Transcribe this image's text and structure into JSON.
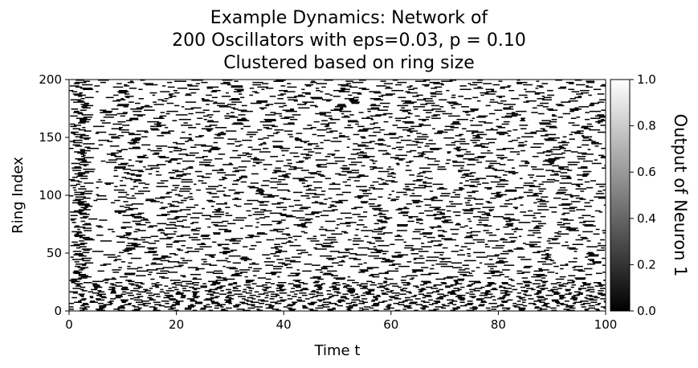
{
  "chart_data": {
    "type": "heatmap",
    "title_lines": [
      "Example Dynamics: Network of",
      "200 Oscillators with eps=0.03, p = 0.10",
      "Clustered based on ring size"
    ],
    "xlabel": "Time t",
    "ylabel": "Ring Index",
    "xlim": [
      0,
      100
    ],
    "ylim": [
      0,
      200
    ],
    "x_ticks": [
      "0",
      "20",
      "40",
      "60",
      "80",
      "100"
    ],
    "y_ticks": [
      "0",
      "50",
      "100",
      "150",
      "200"
    ],
    "colorbar": {
      "label": "Output of Neuron 1",
      "range": [
        0.0,
        1.0
      ],
      "ticks": [
        "0.0",
        "0.2",
        "0.4",
        "0.6",
        "0.8",
        "1.0"
      ],
      "colormap": "gray (0 = black, 1 = white)"
    },
    "pattern": {
      "description": "binary raster: neurons are mostly white (1.0) with short black (0.0) dashes; small ring indices (roughly 0-25) show dense regular dashes, higher indices show sparser, irregular dashes",
      "values_present": [
        0.0,
        1.0
      ]
    }
  }
}
